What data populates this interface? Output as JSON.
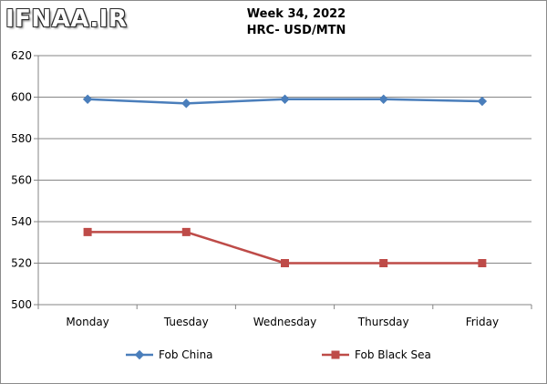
{
  "brand": {
    "logo_text": "IFNAA.IR"
  },
  "chart_data": {
    "type": "line",
    "title": "Week 34, 2022",
    "subtitle": "HRC- USD/MTN",
    "categories": [
      "Monday",
      "Tuesday",
      "Wednesday",
      "Thursday",
      "Friday"
    ],
    "series": [
      {
        "name": "Fob China",
        "values": [
          599,
          597,
          599,
          599,
          598
        ],
        "color": "#4a7ebb",
        "marker": "diamond"
      },
      {
        "name": "Fob Black Sea",
        "values": [
          535,
          535,
          520,
          520,
          520
        ],
        "color": "#be4b48",
        "marker": "square"
      }
    ],
    "ylim": [
      500,
      620
    ],
    "yticks": [
      500,
      520,
      540,
      560,
      580,
      600,
      620
    ],
    "grid": true,
    "legend_position": "bottom"
  }
}
